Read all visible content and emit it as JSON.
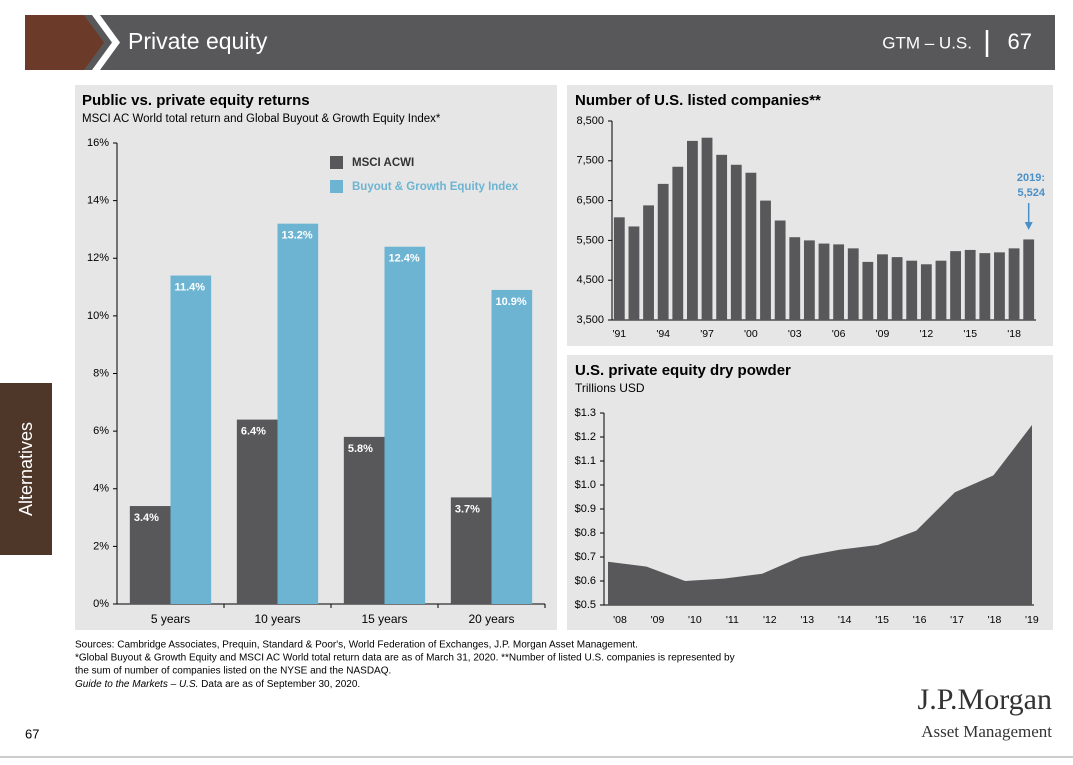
{
  "header": {
    "title": "Private equity",
    "section": "GTM – U.S.",
    "page": "67"
  },
  "side_tab": "Alternatives",
  "chart_data": [
    {
      "type": "grouped_bar",
      "title": "Public vs. private equity returns",
      "subtitle": "MSCI AC World total return and Global Buyout & Growth Equity Index*",
      "categories": [
        "5 years",
        "10 years",
        "15 years",
        "20 years"
      ],
      "series": [
        {
          "name": "MSCI ACWI",
          "color": "#58585a",
          "values": [
            3.4,
            6.4,
            5.8,
            3.7
          ],
          "value_labels": [
            "3.4%",
            "6.4%",
            "5.8%",
            "3.7%"
          ]
        },
        {
          "name": "Buyout & Growth Equity Index",
          "color": "#6cb4d2",
          "values": [
            11.4,
            13.2,
            12.4,
            10.9
          ],
          "value_labels": [
            "11.4%",
            "13.2%",
            "12.4%",
            "10.9%"
          ]
        }
      ],
      "ylim": [
        0,
        16
      ],
      "yticks": [
        {
          "value": 0,
          "label": "0%"
        },
        {
          "value": 2,
          "label": "2%"
        },
        {
          "value": 4,
          "label": "4%"
        },
        {
          "value": 6,
          "label": "6%"
        },
        {
          "value": 8,
          "label": "8%"
        },
        {
          "value": 10,
          "label": "10%"
        },
        {
          "value": 12,
          "label": "12%"
        },
        {
          "value": 14,
          "label": "14%"
        },
        {
          "value": 16,
          "label": "16%"
        }
      ],
      "legend": "top-right"
    },
    {
      "type": "bar",
      "title": "Number of U.S. listed companies**",
      "categories": [
        "'91",
        null,
        null,
        "'94",
        null,
        null,
        "'97",
        null,
        null,
        "'00",
        null,
        null,
        "'03",
        null,
        null,
        "'06",
        null,
        null,
        "'09",
        null,
        null,
        "'12",
        null,
        null,
        "'15",
        null,
        null,
        "'18",
        null
      ],
      "values": [
        6080,
        5850,
        6380,
        6920,
        7350,
        8000,
        8080,
        7650,
        7400,
        7200,
        6500,
        6000,
        5580,
        5500,
        5420,
        5400,
        5300,
        4960,
        5150,
        5080,
        4990,
        4900,
        4990,
        5230,
        5260,
        5180,
        5200,
        5300,
        5524
      ],
      "color": "#58585a",
      "ylim": [
        3500,
        8500
      ],
      "yticks": [
        {
          "value": 3500,
          "label": "3,500"
        },
        {
          "value": 4500,
          "label": "4,500"
        },
        {
          "value": 5500,
          "label": "5,500"
        },
        {
          "value": 6500,
          "label": "6,500"
        },
        {
          "value": 7500,
          "label": "7,500"
        },
        {
          "value": 8500,
          "label": "8,500"
        }
      ],
      "annotation": {
        "lines": [
          "2019:",
          "5,524"
        ],
        "color": "#4a90c8"
      }
    },
    {
      "type": "area",
      "title": "U.S. private equity dry powder",
      "subtitle": "Trillions USD",
      "categories": [
        "'08",
        "'09",
        "'10",
        "'11",
        "'12",
        "'13",
        "'14",
        "'15",
        "'16",
        "'17",
        "'18",
        "'19"
      ],
      "values": [
        0.68,
        0.66,
        0.6,
        0.61,
        0.63,
        0.7,
        0.73,
        0.75,
        0.81,
        0.97,
        1.04,
        1.25
      ],
      "color": "#58585a",
      "ylim": [
        0.5,
        1.3
      ],
      "yticks": [
        {
          "value": 0.5,
          "label": "$0.5"
        },
        {
          "value": 0.6,
          "label": "$0.6"
        },
        {
          "value": 0.7,
          "label": "$0.7"
        },
        {
          "value": 0.8,
          "label": "$0.8"
        },
        {
          "value": 0.9,
          "label": "$0.9"
        },
        {
          "value": 1.0,
          "label": "$1.0"
        },
        {
          "value": 1.1,
          "label": "$1.1"
        },
        {
          "value": 1.2,
          "label": "$1.2"
        },
        {
          "value": 1.3,
          "label": "$1.3"
        }
      ]
    }
  ],
  "notes": [
    "Sources: Cambridge Associates, Prequin, Standard & Poor's, World Federation of Exchanges, J.P. Morgan Asset Management.",
    "*Global Buyout & Growth Equity and MSCI AC World total return data are as of March 31, 2020. **Number of listed U.S. companies is represented by",
    "the sum of number of companies listed on the NYSE and the NASDAQ."
  ],
  "guide_note": {
    "italic": "Guide to the Markets – U.S.",
    "rest": " Data are as of September 30, 2020."
  },
  "footer": {
    "page_number": "67",
    "logo": "J.P.Morgan",
    "logo_sub": "Asset Management"
  }
}
